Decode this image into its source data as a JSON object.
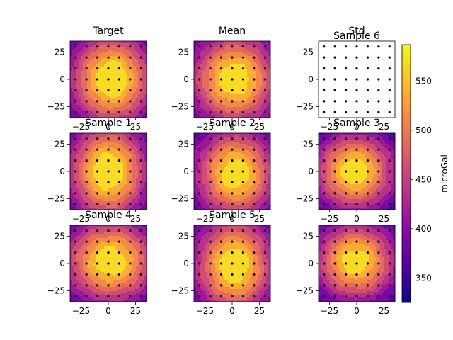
{
  "colors": {
    "colormap": [
      "#0d0887",
      "#5302a3",
      "#8b0aa5",
      "#b83289",
      "#db5c68",
      "#f48849",
      "#febd2a",
      "#f0f921"
    ],
    "background": "#ffffff",
    "dot": "#000000"
  },
  "chart_data": {
    "type": "heatmap",
    "layout": "3x3 grid of contour maps with shared colorbar",
    "colorbar": {
      "label": "microGal",
      "range": [
        325,
        587
      ],
      "ticks": [
        350,
        400,
        450,
        500,
        550
      ],
      "tick_labels": [
        "350",
        "400",
        "450",
        "500",
        "550"
      ],
      "colormap": "plasma"
    },
    "axes": {
      "xlim": [
        -35,
        35
      ],
      "ylim": [
        -35,
        35
      ],
      "xticks": [
        -25,
        0,
        25
      ],
      "xtick_labels": [
        "−25",
        "0",
        "25"
      ],
      "yticks": [
        25,
        0,
        -25
      ],
      "ytick_labels": [
        "25",
        "0",
        "−25"
      ]
    },
    "station_grid": {
      "x": [
        -30,
        -20,
        -10,
        0,
        10,
        20,
        30
      ],
      "y": [
        -30,
        -20,
        -10,
        0,
        10,
        20,
        30
      ]
    },
    "panels": [
      {
        "title": "Target",
        "kind": "contour",
        "center": [
          3,
          0
        ],
        "peak": 585,
        "spread": 27,
        "stretch": [
          1.0,
          1.1
        ]
      },
      {
        "title": "Mean",
        "kind": "contour",
        "center": [
          2,
          0
        ],
        "peak": 580,
        "spread": 28,
        "stretch": [
          1.0,
          1.05
        ]
      },
      {
        "title": "Std",
        "kind": "blank",
        "overlap_title": "Sample 6"
      },
      {
        "title": "Sample 1",
        "kind": "contour",
        "center": [
          0,
          0
        ],
        "peak": 585,
        "spread": 27,
        "stretch": [
          0.95,
          1.15
        ]
      },
      {
        "title": "Sample 2",
        "kind": "contour",
        "center": [
          3,
          -2
        ],
        "peak": 578,
        "spread": 26,
        "stretch": [
          1.0,
          1.1
        ]
      },
      {
        "title": "Sample 3",
        "kind": "contour",
        "center": [
          -2,
          0
        ],
        "peak": 575,
        "spread": 25,
        "stretch": [
          1.05,
          1.0
        ]
      },
      {
        "title": "Sample 4",
        "kind": "contour",
        "center": [
          2,
          2
        ],
        "peak": 578,
        "spread": 27,
        "stretch": [
          1.1,
          1.0
        ]
      },
      {
        "title": "Sample 5",
        "kind": "contour",
        "center": [
          2,
          -2
        ],
        "peak": 582,
        "spread": 27,
        "stretch": [
          0.95,
          1.15
        ]
      },
      {
        "title": "",
        "kind": "contour",
        "center": [
          -1,
          2
        ],
        "peak": 575,
        "spread": 25,
        "stretch": [
          1.05,
          1.0
        ]
      }
    ]
  }
}
